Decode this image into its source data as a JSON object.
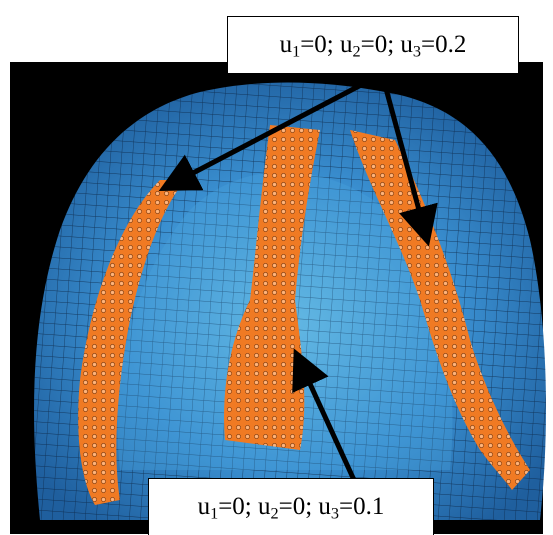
{
  "callouts": {
    "top": {
      "parts": [
        {
          "var": "u",
          "sub": "1",
          "val": "=0; "
        },
        {
          "var": "u",
          "sub": "2",
          "val": "=0; "
        },
        {
          "var": "u",
          "sub": "3",
          "val": "=0.2"
        }
      ]
    },
    "bottom": {
      "parts": [
        {
          "var": "u",
          "sub": "1",
          "val": "=0; "
        },
        {
          "var": "u",
          "sub": "2",
          "val": "=0; "
        },
        {
          "var": "u",
          "sub": "3",
          "val": "=0.1"
        }
      ]
    }
  },
  "colors": {
    "background": "#000000",
    "mesh_fill": "#2f7fc4",
    "mesh_light": "#6fc2e6",
    "mesh_lines": "#0a2340",
    "region_orange": "#f07a23",
    "arrow": "#000000"
  }
}
